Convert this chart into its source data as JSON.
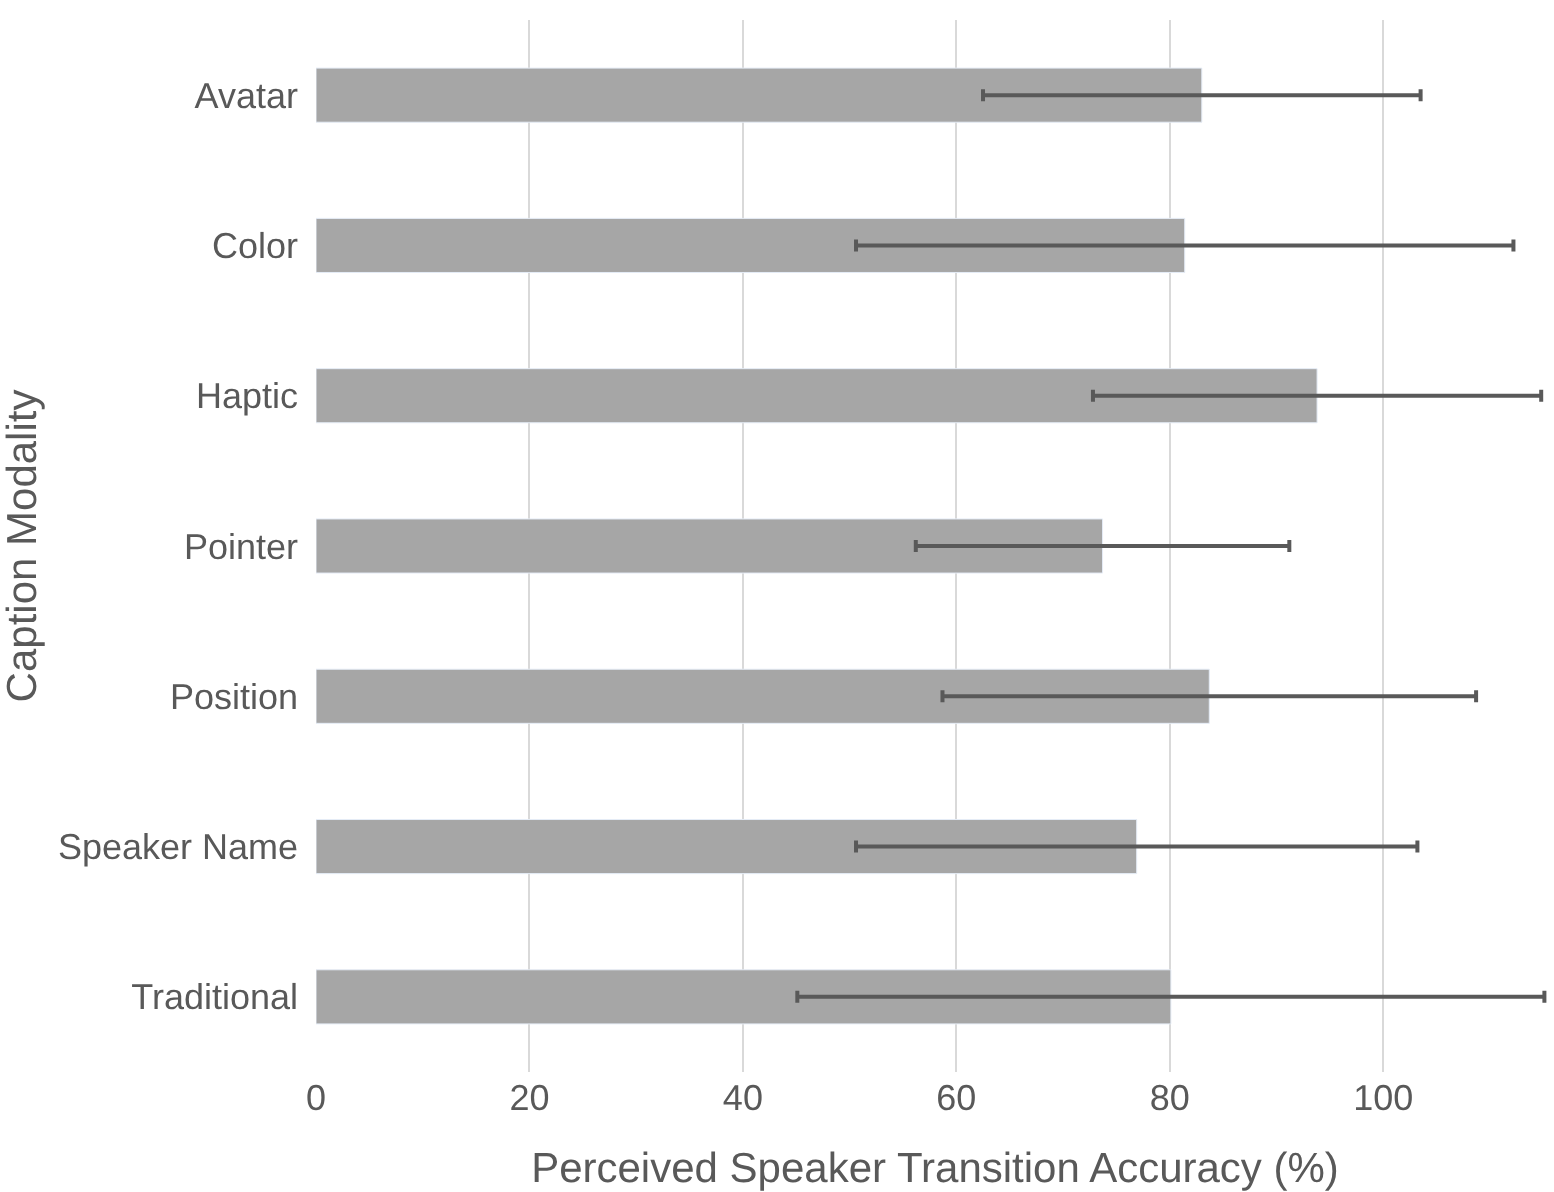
{
  "chart_data": {
    "type": "bar",
    "orientation": "horizontal",
    "categories": [
      "Avatar",
      "Color",
      "Haptic",
      "Pointer",
      "Position",
      "Speaker Name",
      "Traditional"
    ],
    "values": [
      83.0,
      81.4,
      93.8,
      73.7,
      83.7,
      76.9,
      80.1
    ],
    "errors": [
      20.5,
      30.8,
      21,
      17.5,
      25,
      26.3,
      35
    ],
    "color": "#a6a6a6",
    "xlabel": "Perceived Speaker Transition Accuracy (%)",
    "ylabel": "Caption Modality",
    "xlim": [
      0,
      116
    ],
    "xticks": [
      0,
      20,
      40,
      60,
      80,
      100
    ],
    "grid": "x"
  }
}
